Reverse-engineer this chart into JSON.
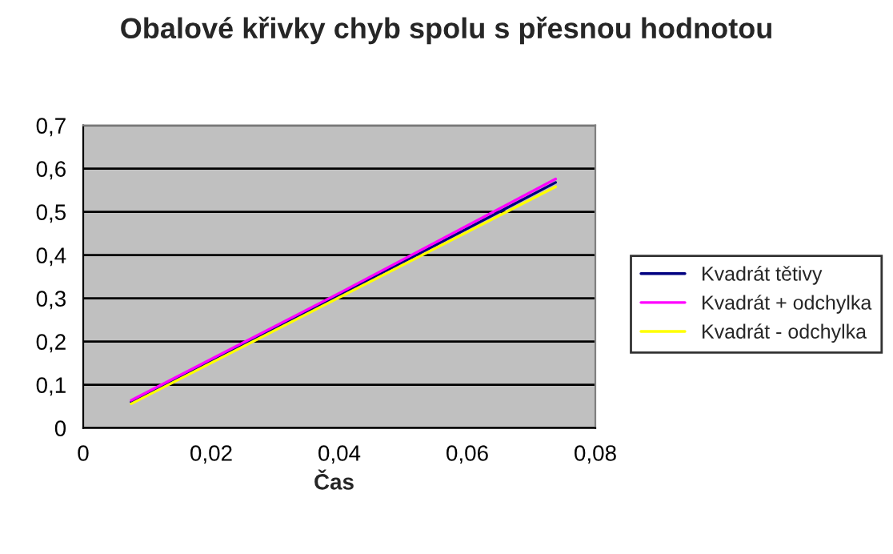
{
  "chart_data": {
    "type": "line",
    "title": "Obalové křivky chyb spolu s přesnou hodnotou",
    "xlabel": "Čas",
    "series": [
      {
        "name": "Kvadrát tětivy",
        "color": "#000080",
        "x": [
          0.0075,
          0.04,
          0.0738
        ],
        "values": [
          0.06,
          0.307,
          0.568
        ]
      },
      {
        "name": "Kvadrát + odchylka",
        "color": "#ff00ff",
        "x": [
          0.0075,
          0.04,
          0.0738
        ],
        "values": [
          0.064,
          0.312,
          0.576
        ]
      },
      {
        "name": "Kvadrát - odchylka",
        "color": "#ffff00",
        "x": [
          0.0075,
          0.04,
          0.0738
        ],
        "values": [
          0.056,
          0.302,
          0.558
        ]
      }
    ],
    "xlim": [
      0,
      0.08
    ],
    "xticks": [
      {
        "value": 0,
        "label": "0"
      },
      {
        "value": 0.02,
        "label": "0,02"
      },
      {
        "value": 0.04,
        "label": "0,04"
      },
      {
        "value": 0.06,
        "label": "0,06"
      },
      {
        "value": 0.08,
        "label": "0,08"
      }
    ],
    "ylim": [
      0,
      0.7
    ],
    "yticks": [
      {
        "value": 0,
        "label": "0"
      },
      {
        "value": 0.1,
        "label": "0,1"
      },
      {
        "value": 0.2,
        "label": "0,2"
      },
      {
        "value": 0.3,
        "label": "0,3"
      },
      {
        "value": 0.4,
        "label": "0,4"
      },
      {
        "value": 0.5,
        "label": "0,5"
      },
      {
        "value": 0.6,
        "label": "0,6"
      },
      {
        "value": 0.7,
        "label": "0,7"
      }
    ],
    "grid": "y",
    "legend": "right",
    "marker": "none",
    "line_style": "solid"
  }
}
